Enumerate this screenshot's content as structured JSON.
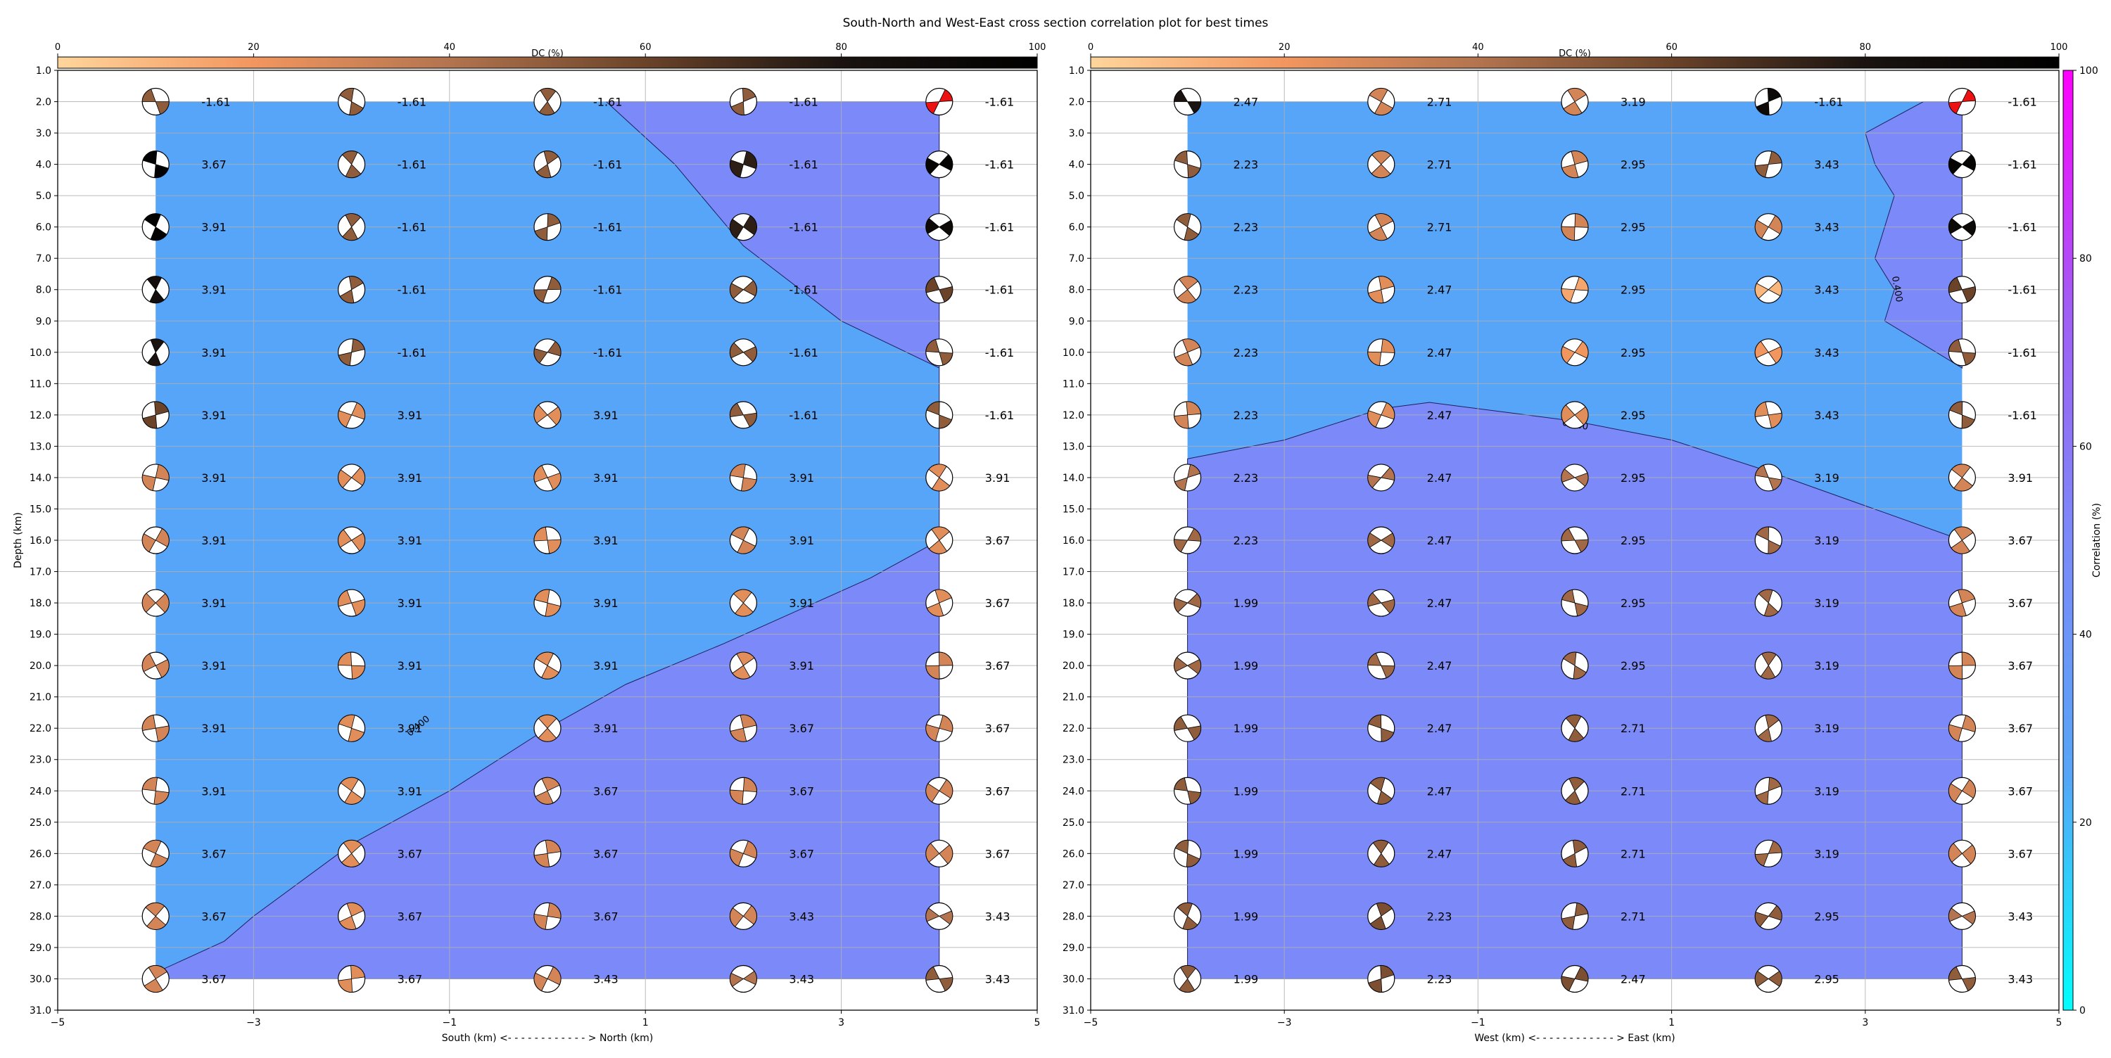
{
  "title": "South-North and West-East cross section correlation plot for best times",
  "colors": {
    "background_band": "#56a5f8",
    "contour_fill": "#7b8af8",
    "dc_cmap": [
      "#ffd59b",
      "#f2965f",
      "#b3744f",
      "#6a4329",
      "#1a1310",
      "#000000"
    ],
    "corr_cmap": [
      "#00ffff",
      "#56a5f8",
      "#7b8af8",
      "#a25cf5",
      "#ff00ff"
    ],
    "red_beachball": "#ee1111"
  },
  "dc_colorbar": {
    "label": "DC (%)",
    "ticks": [
      "0",
      "20",
      "40",
      "60",
      "80",
      "100"
    ]
  },
  "corr_colorbar": {
    "label": "Correlation (%)",
    "ticks": [
      "0",
      "20",
      "40",
      "60",
      "80",
      "100"
    ]
  },
  "chart_data": [
    {
      "type": "scatter",
      "subtype": "beachball cross-section",
      "xlabel": "South (km) <- - - - - - - - - - - - > North (km)",
      "ylabel": "Depth (km)",
      "xlim": [
        -5,
        5
      ],
      "ylim": [
        31.0,
        1.0
      ],
      "x_ticks": [
        "−5",
        "−3",
        "−1",
        "1",
        "3",
        "5"
      ],
      "depth_ticks": [
        "1.0",
        "2.0",
        "3.0",
        "4.0",
        "5.0",
        "6.0",
        "7.0",
        "8.0",
        "9.0",
        "10.0",
        "11.0",
        "12.0",
        "13.0",
        "14.0",
        "15.0",
        "16.0",
        "17.0",
        "18.0",
        "19.0",
        "20.0",
        "21.0",
        "22.0",
        "23.0",
        "24.0",
        "25.0",
        "26.0",
        "27.0",
        "28.0",
        "29.0",
        "30.0",
        "31.0"
      ],
      "grid": true,
      "columns_x": [
        -4,
        -2,
        0,
        2,
        4
      ],
      "rows_depth": [
        2,
        4,
        6,
        8,
        10,
        12,
        14,
        16,
        18,
        20,
        22,
        24,
        26,
        28,
        30
      ],
      "time_labels": [
        [
          "-1.61",
          "-1.61",
          "-1.61",
          "-1.61",
          "-1.61"
        ],
        [
          "3.67",
          "-1.61",
          "-1.61",
          "-1.61",
          "-1.61"
        ],
        [
          "3.91",
          "-1.61",
          "-1.61",
          "-1.61",
          "-1.61"
        ],
        [
          "3.91",
          "-1.61",
          "-1.61",
          "-1.61",
          "-1.61"
        ],
        [
          "3.91",
          "-1.61",
          "-1.61",
          "-1.61",
          "-1.61"
        ],
        [
          "3.91",
          "3.91",
          "3.91",
          "-1.61",
          "-1.61"
        ],
        [
          "3.91",
          "3.91",
          "3.91",
          "3.91",
          "3.91"
        ],
        [
          "3.91",
          "3.91",
          "3.91",
          "3.91",
          "3.67"
        ],
        [
          "3.91",
          "3.91",
          "3.91",
          "3.91",
          "3.67"
        ],
        [
          "3.91",
          "3.91",
          "3.91",
          "3.91",
          "3.67"
        ],
        [
          "3.91",
          "3.91",
          "3.91",
          "3.67",
          "3.67"
        ],
        [
          "3.91",
          "3.91",
          "3.67",
          "3.67",
          "3.67"
        ],
        [
          "3.67",
          "3.67",
          "3.67",
          "3.67",
          "3.67"
        ],
        [
          "3.67",
          "3.67",
          "3.67",
          "3.43",
          "3.43"
        ],
        [
          "3.67",
          "3.67",
          "3.43",
          "3.43",
          "3.43"
        ]
      ],
      "dc_percent": [
        [
          50,
          50,
          50,
          50,
          0
        ],
        [
          98,
          50,
          50,
          75,
          95
        ],
        [
          98,
          50,
          50,
          75,
          90
        ],
        [
          85,
          50,
          50,
          50,
          60
        ],
        [
          80,
          50,
          50,
          50,
          50
        ],
        [
          60,
          25,
          25,
          50,
          50
        ],
        [
          30,
          25,
          25,
          30,
          25
        ],
        [
          30,
          25,
          25,
          30,
          25
        ],
        [
          30,
          25,
          25,
          25,
          25
        ],
        [
          30,
          25,
          25,
          25,
          30
        ],
        [
          30,
          25,
          25,
          30,
          30
        ],
        [
          30,
          25,
          30,
          30,
          30
        ],
        [
          30,
          25,
          30,
          30,
          30
        ],
        [
          30,
          25,
          30,
          30,
          40
        ],
        [
          30,
          25,
          30,
          40,
          50
        ]
      ],
      "red_beachballs": [
        [
          0,
          4
        ]
      ],
      "contour": {
        "level_label": "0.400",
        "region": "lower-right",
        "boundary_points": [
          [
            0.6,
            2.0
          ],
          [
            1.3,
            4.0
          ],
          [
            2.0,
            6.6
          ],
          [
            3.0,
            9.0
          ],
          [
            4.0,
            10.5
          ],
          [
            4.0,
            16.0
          ],
          [
            3.3,
            17.2
          ],
          [
            1.8,
            19.3
          ],
          [
            0.8,
            20.6
          ],
          [
            0.0,
            22.0
          ],
          [
            -1.0,
            24.0
          ],
          [
            -2.0,
            25.7
          ],
          [
            -3.0,
            28.0
          ],
          [
            -3.3,
            28.8
          ],
          [
            -4.0,
            29.8
          ],
          [
            -4.0,
            30.0
          ],
          [
            4.0,
            30.0
          ],
          [
            4.0,
            2.0
          ]
        ],
        "label_position": [
          -1.3,
          22.0
        ]
      }
    },
    {
      "type": "scatter",
      "subtype": "beachball cross-section",
      "xlabel": "West (km) <- - - - - - - - - - - - > East (km)",
      "ylabel": "",
      "xlim": [
        -5,
        5
      ],
      "ylim": [
        31.0,
        1.0
      ],
      "x_ticks": [
        "−5",
        "−3",
        "−1",
        "1",
        "3",
        "5"
      ],
      "depth_ticks": [
        "1.0",
        "2.0",
        "3.0",
        "4.0",
        "5.0",
        "6.0",
        "7.0",
        "8.0",
        "9.0",
        "10.0",
        "11.0",
        "12.0",
        "13.0",
        "14.0",
        "15.0",
        "16.0",
        "17.0",
        "18.0",
        "19.0",
        "20.0",
        "21.0",
        "22.0",
        "23.0",
        "24.0",
        "25.0",
        "26.0",
        "27.0",
        "28.0",
        "29.0",
        "30.0",
        "31.0"
      ],
      "grid": true,
      "columns_x": [
        -4,
        -2,
        0,
        2,
        4
      ],
      "rows_depth": [
        2,
        4,
        6,
        8,
        10,
        12,
        14,
        16,
        18,
        20,
        22,
        24,
        26,
        28,
        30
      ],
      "time_labels": [
        [
          "2.47",
          "2.71",
          "3.19",
          "-1.61",
          "-1.61"
        ],
        [
          "2.23",
          "2.71",
          "2.95",
          "3.43",
          "-1.61"
        ],
        [
          "2.23",
          "2.71",
          "2.95",
          "3.43",
          "-1.61"
        ],
        [
          "2.23",
          "2.47",
          "2.95",
          "3.43",
          "-1.61"
        ],
        [
          "2.23",
          "2.47",
          "2.95",
          "3.43",
          "-1.61"
        ],
        [
          "2.23",
          "2.47",
          "2.95",
          "3.43",
          "-1.61"
        ],
        [
          "2.23",
          "2.47",
          "2.95",
          "3.19",
          "3.91"
        ],
        [
          "2.23",
          "2.47",
          "2.95",
          "3.19",
          "3.67"
        ],
        [
          "1.99",
          "2.47",
          "2.95",
          "3.19",
          "3.67"
        ],
        [
          "1.99",
          "2.47",
          "2.95",
          "3.19",
          "3.67"
        ],
        [
          "1.99",
          "2.47",
          "2.71",
          "3.19",
          "3.67"
        ],
        [
          "1.99",
          "2.47",
          "2.71",
          "3.19",
          "3.67"
        ],
        [
          "1.99",
          "2.47",
          "2.71",
          "3.19",
          "3.67"
        ],
        [
          "1.99",
          "2.23",
          "2.71",
          "2.95",
          "3.43"
        ],
        [
          "1.99",
          "2.23",
          "2.47",
          "2.95",
          "3.43"
        ]
      ],
      "dc_percent": [
        [
          80,
          30,
          30,
          90,
          0
        ],
        [
          50,
          30,
          30,
          50,
          95
        ],
        [
          50,
          30,
          30,
          30,
          90
        ],
        [
          30,
          25,
          15,
          10,
          60
        ],
        [
          30,
          25,
          20,
          20,
          50
        ],
        [
          30,
          25,
          25,
          25,
          50
        ],
        [
          40,
          40,
          40,
          40,
          30
        ],
        [
          45,
          45,
          45,
          45,
          30
        ],
        [
          45,
          45,
          45,
          45,
          30
        ],
        [
          45,
          45,
          45,
          45,
          30
        ],
        [
          50,
          50,
          50,
          45,
          30
        ],
        [
          50,
          50,
          50,
          45,
          30
        ],
        [
          50,
          50,
          50,
          45,
          30
        ],
        [
          50,
          55,
          50,
          50,
          40
        ],
        [
          50,
          55,
          55,
          50,
          50
        ]
      ],
      "red_beachballs": [
        [
          0,
          4
        ]
      ],
      "contour": {
        "level_label": "0.400",
        "region": "mixed",
        "lower_region_points": [
          [
            -4.0,
            13.4
          ],
          [
            -3.0,
            12.8
          ],
          [
            -2.0,
            11.8
          ],
          [
            -1.5,
            11.6
          ],
          [
            0.0,
            12.2
          ],
          [
            1.0,
            12.8
          ],
          [
            2.0,
            13.8
          ],
          [
            3.0,
            14.9
          ],
          [
            4.0,
            16.0
          ],
          [
            4.0,
            30.0
          ],
          [
            -4.0,
            30.0
          ]
        ],
        "upper_right_region_points": [
          [
            3.6,
            2.0
          ],
          [
            3.9,
            2.0
          ],
          [
            4.0,
            2.0
          ],
          [
            4.0,
            10.5
          ],
          [
            3.2,
            9.0
          ],
          [
            3.3,
            8.0
          ],
          [
            3.1,
            7.0
          ],
          [
            3.3,
            5.0
          ],
          [
            3.1,
            4.0
          ],
          [
            3.0,
            3.0
          ],
          [
            3.6,
            2.0
          ]
        ],
        "label_positions": [
          [
            0.0,
            12.4
          ],
          [
            3.3,
            8.0
          ]
        ]
      }
    }
  ]
}
